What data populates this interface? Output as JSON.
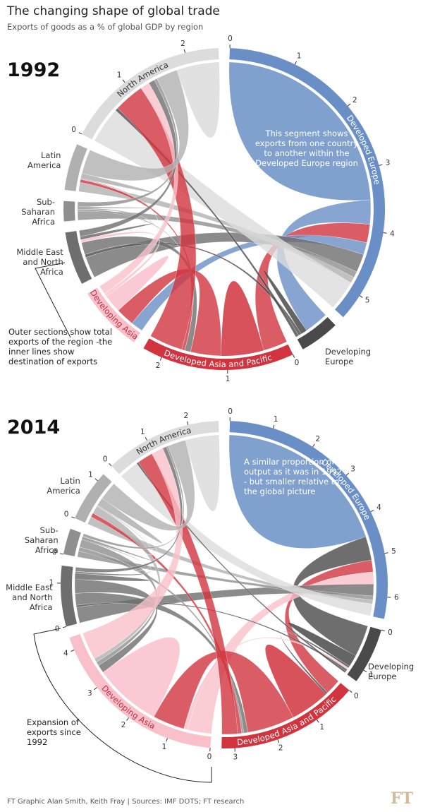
{
  "title": "The changing shape of global trade",
  "subtitle": "Exports of goods as a % of global GDP by region",
  "source": "FT Graphic Alan Smith, Keith Fray | Sources: IMF DOTS; FT research",
  "logo": "FT",
  "chart_data": [
    {
      "type": "chord",
      "title": "1992",
      "annotations": [
        "This segment shows exports from one country to another within the Developed Europe region",
        "Outer sections show total exports of the region -the inner lines show destination of exports"
      ],
      "regions": [
        {
          "name": "Developed Europe",
          "color": "#6a8fc6",
          "label": "arc",
          "label_color": "#ffffff",
          "flows": [
            3.5,
            0.4,
            0.3,
            0.2,
            0.3,
            0.1,
            0.1,
            0.5
          ],
          "ticks": [
            0,
            1,
            2,
            3,
            4,
            5
          ]
        },
        {
          "name": "Developing Europe",
          "color": "#4a4a4a",
          "label": "outside",
          "flows": [
            0.4,
            0.1,
            null,
            null,
            0.05,
            null,
            null,
            0.05
          ],
          "ticks": []
        },
        {
          "name": "Developed Asia and Pacific",
          "color": "#d1343e",
          "label": "arc",
          "label_color": "#ffffff",
          "flows": [
            0.4,
            null,
            0.7,
            0.5,
            0.1,
            null,
            0.05,
            0.55
          ],
          "ticks": [
            0,
            1,
            2
          ]
        },
        {
          "name": "Developing Asia",
          "color": "#f9c0cb",
          "label": "arc",
          "label_color": "#c0303c",
          "flows": [
            0.2,
            null,
            0.3,
            0.3,
            0.05,
            null,
            null,
            0.15
          ],
          "ticks": []
        },
        {
          "name": "Middle East and North Africa",
          "color": "#6e6e6e",
          "label": "outside",
          "flows": [
            0.35,
            0.05,
            0.2,
            0.05,
            0.05,
            null,
            null,
            0.1
          ],
          "ticks": []
        },
        {
          "name": "Sub-Saharan Africa",
          "color": "#8f8f8f",
          "label": "outside",
          "flows": [
            0.15,
            null,
            0.03,
            0.02,
            null,
            0.02,
            null,
            0.08
          ],
          "ticks": []
        },
        {
          "name": "Latin America",
          "color": "#b0b0b0",
          "label": "outside",
          "flows": [
            0.15,
            null,
            0.05,
            0.02,
            null,
            null,
            0.08,
            0.4
          ],
          "ticks": []
        },
        {
          "name": "North America",
          "color": "#dcdcdc",
          "label": "arc",
          "label_color": "#333333",
          "flows": [
            0.6,
            0.05,
            0.5,
            0.15,
            0.1,
            0.05,
            0.35,
            0.7
          ],
          "ticks": [
            0,
            1,
            2
          ]
        }
      ]
    },
    {
      "type": "chord",
      "title": "2014",
      "annotations": [
        "A similar proportion of output as it was in 1992 - but smaller relative to the global picture",
        "Expansion of exports since 1992"
      ],
      "regions": [
        {
          "name": "Developed Europe",
          "color": "#6a8fc6",
          "label": "arc",
          "label_color": "#ffffff",
          "flows": [
            4.5,
            0.6,
            0.3,
            0.3,
            0.3,
            0.1,
            0.1,
            0.3
          ],
          "ticks": [
            0,
            1,
            2,
            3,
            4,
            5,
            6
          ]
        },
        {
          "name": "Developing Europe",
          "color": "#4a4a4a",
          "label": "outside",
          "flows": [
            0.8,
            0.3,
            0.05,
            0.05,
            0.05,
            null,
            null,
            0.05
          ],
          "ticks": [
            0,
            1
          ]
        },
        {
          "name": "Developed Asia and Pacific",
          "color": "#d1343e",
          "label": "arc",
          "label_color": "#ffffff",
          "flows": [
            0.4,
            0.05,
            1.0,
            1.2,
            0.1,
            0.05,
            0.1,
            0.4
          ],
          "ticks": [
            0,
            1,
            2,
            3
          ]
        },
        {
          "name": "Developing Asia",
          "color": "#f9c0cb",
          "label": "arc",
          "label_color": "#c0303c",
          "flows": [
            0.6,
            0.1,
            0.8,
            1.7,
            0.2,
            0.1,
            0.1,
            0.7
          ],
          "ticks": [
            0,
            1,
            2,
            3,
            4
          ]
        },
        {
          "name": "Middle East and North Africa",
          "color": "#6e6e6e",
          "label": "outside",
          "flows": [
            0.4,
            0.05,
            0.3,
            0.35,
            0.15,
            0.05,
            null,
            0.1
          ],
          "ticks": [
            0,
            1
          ]
        },
        {
          "name": "Sub-Saharan Africa",
          "color": "#8f8f8f",
          "label": "outside",
          "flows": [
            0.15,
            null,
            0.1,
            0.2,
            0.02,
            0.05,
            0.01,
            0.07
          ],
          "ticks": [
            0
          ]
        },
        {
          "name": "Latin America",
          "color": "#b0b0b0",
          "label": "outside",
          "flows": [
            0.2,
            null,
            0.1,
            0.2,
            0.02,
            0.01,
            0.2,
            0.47
          ],
          "ticks": [
            0,
            1
          ]
        },
        {
          "name": "North America",
          "color": "#dcdcdc",
          "label": "arc",
          "label_color": "#333333",
          "flows": [
            0.5,
            0.05,
            0.4,
            0.3,
            0.1,
            0.05,
            0.45,
            0.85
          ],
          "ticks": [
            0,
            1,
            2
          ]
        }
      ]
    }
  ]
}
